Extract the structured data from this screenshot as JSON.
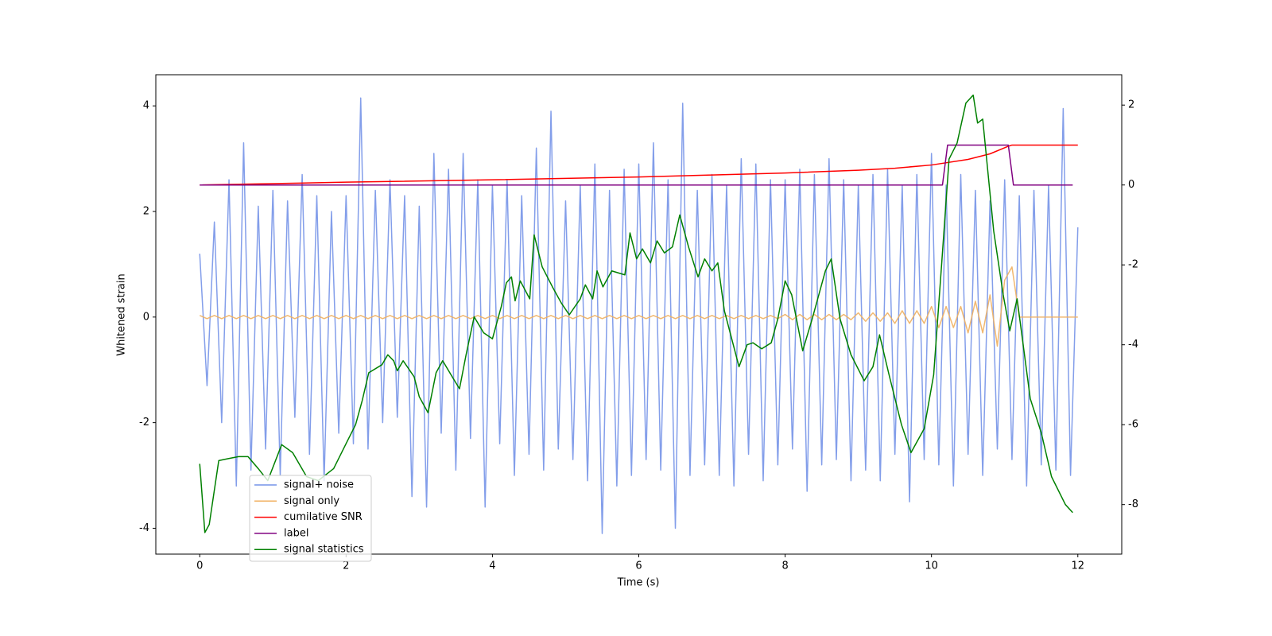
{
  "chart_data": {
    "type": "line",
    "x_label": "Time (s)",
    "y_label": "Whitened strain",
    "xlim": [
      -0.6,
      12.6
    ],
    "ylim": [
      -4.49,
      4.59
    ],
    "y2lim": [
      -9.24,
      2.76
    ],
    "xticks": [
      0,
      2,
      4,
      6,
      8,
      10,
      12
    ],
    "yticks": [
      -4,
      -2,
      0,
      2,
      4
    ],
    "y2ticks": [
      -8,
      -6,
      -4,
      -2,
      0,
      2
    ],
    "x": [
      0,
      0.1,
      0.2,
      0.3,
      0.4,
      0.5,
      0.6,
      0.7,
      0.8,
      0.9,
      1,
      1.1,
      1.2,
      1.3,
      1.4,
      1.5,
      1.6,
      1.7,
      1.8,
      1.9,
      2,
      2.1,
      2.2,
      2.3,
      2.4,
      2.5,
      2.6,
      2.7,
      2.8,
      2.9,
      3,
      3.1,
      3.2,
      3.3,
      3.4,
      3.5,
      3.6,
      3.7,
      3.8,
      3.9,
      4,
      4.1,
      4.2,
      4.3,
      4.4,
      4.5,
      4.6,
      4.7,
      4.8,
      4.9,
      5,
      5.1,
      5.2,
      5.3,
      5.4,
      5.5,
      5.6,
      5.7,
      5.8,
      5.9,
      6,
      6.1,
      6.2,
      6.3,
      6.4,
      6.5,
      6.6,
      6.7,
      6.8,
      6.9,
      7,
      7.1,
      7.2,
      7.3,
      7.4,
      7.5,
      7.6,
      7.7,
      7.8,
      7.9,
      8,
      8.1,
      8.2,
      8.3,
      8.4,
      8.5,
      8.6,
      8.7,
      8.8,
      8.9,
      9,
      9.1,
      9.2,
      9.3,
      9.4,
      9.5,
      9.6,
      9.7,
      9.8,
      9.9,
      10,
      10.1,
      10.2,
      10.3,
      10.4,
      10.5,
      10.6,
      10.7,
      10.8,
      10.9,
      11,
      11.1,
      11.2,
      11.3,
      11.4,
      11.5,
      11.6,
      11.7,
      11.8,
      11.9,
      12
    ],
    "legend": "lower left",
    "series": [
      {
        "name": "signal+ noise",
        "color": "#7593e8",
        "axis": "y",
        "values": [
          1.2,
          -1.3,
          1.8,
          -2.0,
          2.6,
          -3.2,
          3.3,
          -2.9,
          2.1,
          -2.5,
          2.4,
          -3.0,
          2.2,
          -1.9,
          2.7,
          -2.6,
          2.3,
          -3.1,
          2.0,
          -2.2,
          2.3,
          -2.4,
          4.15,
          -2.5,
          2.4,
          -2.0,
          2.6,
          -1.9,
          2.3,
          -3.4,
          2.1,
          -3.6,
          3.1,
          -2.2,
          2.8,
          -2.9,
          3.1,
          -2.3,
          2.6,
          -3.6,
          2.5,
          -2.4,
          2.6,
          -3.0,
          2.3,
          -2.6,
          3.2,
          -2.9,
          3.9,
          -2.5,
          2.2,
          -2.7,
          2.5,
          -3.1,
          2.9,
          -4.1,
          2.4,
          -3.2,
          2.8,
          -3.0,
          2.9,
          -2.7,
          3.3,
          -2.9,
          2.6,
          -4.0,
          4.05,
          -3.0,
          2.4,
          -2.8,
          2.7,
          -3.0,
          2.5,
          -3.2,
          3.0,
          -2.6,
          2.9,
          -3.1,
          2.6,
          -2.8,
          2.6,
          -2.5,
          2.8,
          -3.3,
          2.7,
          -2.8,
          3.0,
          -2.7,
          2.6,
          -3.1,
          2.5,
          -2.9,
          2.7,
          -3.1,
          2.8,
          -2.6,
          2.5,
          -3.5,
          2.7,
          -2.7,
          3.1,
          -2.8,
          2.5,
          -3.2,
          2.7,
          -2.6,
          2.4,
          -3.0,
          2.2,
          -2.5,
          2.6,
          -2.7,
          2.3,
          -3.2,
          2.4,
          -2.8,
          2.5,
          -2.9,
          3.95,
          -3.0,
          1.7
        ]
      },
      {
        "name": "signal only",
        "color": "#f0b060",
        "axis": "y",
        "values": [
          0.03,
          -0.03,
          0.03,
          -0.03,
          0.03,
          -0.03,
          0.03,
          -0.03,
          0.03,
          -0.03,
          0.03,
          -0.03,
          0.03,
          -0.03,
          0.03,
          -0.03,
          0.03,
          -0.03,
          0.03,
          -0.03,
          0.03,
          -0.03,
          0.03,
          -0.03,
          0.03,
          -0.03,
          0.03,
          -0.03,
          0.03,
          -0.03,
          0.03,
          -0.03,
          0.03,
          -0.03,
          0.03,
          -0.03,
          0.03,
          -0.03,
          0.03,
          -0.03,
          0.03,
          -0.03,
          0.03,
          -0.03,
          0.03,
          -0.03,
          0.03,
          -0.03,
          0.03,
          -0.03,
          0.03,
          -0.03,
          0.03,
          -0.03,
          0.03,
          -0.03,
          0.03,
          -0.03,
          0.03,
          -0.03,
          0.03,
          -0.03,
          0.03,
          -0.03,
          0.03,
          -0.03,
          0.03,
          -0.03,
          0.03,
          -0.03,
          0.03,
          -0.03,
          0.03,
          -0.03,
          0.03,
          -0.03,
          0.03,
          -0.03,
          0.03,
          -0.03,
          0.05,
          -0.05,
          0.05,
          -0.05,
          0.05,
          -0.05,
          0.05,
          -0.05,
          0.05,
          -0.05,
          0.08,
          -0.08,
          0.08,
          -0.08,
          0.08,
          -0.12,
          0.12,
          -0.12,
          0.12,
          -0.12,
          0.2,
          -0.2,
          0.2,
          -0.2,
          0.2,
          -0.3,
          0.3,
          -0.3,
          0.42,
          -0.55,
          0.7,
          0.95,
          0,
          0,
          0,
          0,
          0,
          0,
          0,
          0,
          0
        ]
      },
      {
        "name": "cumilative SNR",
        "color": "#ff0000",
        "axis": "y2",
        "x": [
          0,
          2,
          4,
          6,
          7,
          8,
          9,
          9.5,
          10,
          10.5,
          10.8,
          11.05,
          11.1,
          12
        ],
        "values": [
          0,
          0.07,
          0.13,
          0.2,
          0.25,
          0.3,
          0.37,
          0.42,
          0.5,
          0.64,
          0.78,
          0.97,
          1,
          1
        ]
      },
      {
        "name": "label",
        "color": "#800080",
        "axis": "y2",
        "x": [
          0,
          10.15,
          10.22,
          11.05,
          11.12,
          11.93
        ],
        "values": [
          0,
          0,
          1,
          1,
          0,
          0
        ]
      },
      {
        "name": "signal statistics",
        "color": "#008000",
        "axis": "y2",
        "x": [
          0,
          0.07,
          0.13,
          0.26,
          0.39,
          0.53,
          0.66,
          0.8,
          0.93,
          1.12,
          1.27,
          1.46,
          1.62,
          1.83,
          2.02,
          2.13,
          2.22,
          2.31,
          2.49,
          2.57,
          2.65,
          2.7,
          2.78,
          2.93,
          3.0,
          3.12,
          3.23,
          3.32,
          3.45,
          3.55,
          3.64,
          3.75,
          3.88,
          4.0,
          4.12,
          4.19,
          4.26,
          4.31,
          4.38,
          4.51,
          4.57,
          4.68,
          4.82,
          4.94,
          5.05,
          5.2,
          5.27,
          5.37,
          5.43,
          5.51,
          5.63,
          5.81,
          5.88,
          5.97,
          6.05,
          6.16,
          6.25,
          6.35,
          6.46,
          6.56,
          6.68,
          6.81,
          6.9,
          7.0,
          7.08,
          7.17,
          7.37,
          7.48,
          7.56,
          7.68,
          7.81,
          7.9,
          8.0,
          8.09,
          8.24,
          8.37,
          8.55,
          8.63,
          8.75,
          8.9,
          9.08,
          9.2,
          9.29,
          9.42,
          9.59,
          9.72,
          9.9,
          10.03,
          10.14,
          10.24,
          10.35,
          10.47,
          10.57,
          10.63,
          10.7,
          10.85,
          10.98,
          11.07,
          11.17,
          11.35,
          11.5,
          11.64,
          11.83,
          11.93
        ],
        "values": [
          -6.98,
          -8.7,
          -8.5,
          -6.9,
          -6.85,
          -6.8,
          -6.8,
          -7.1,
          -7.4,
          -6.5,
          -6.7,
          -7.3,
          -7.4,
          -7.1,
          -6.4,
          -6.0,
          -5.4,
          -4.7,
          -4.5,
          -4.25,
          -4.4,
          -4.65,
          -4.4,
          -4.8,
          -5.3,
          -5.7,
          -4.7,
          -4.4,
          -4.8,
          -5.1,
          -4.25,
          -3.3,
          -3.7,
          -3.85,
          -3.05,
          -2.45,
          -2.3,
          -2.9,
          -2.4,
          -2.85,
          -1.25,
          -2.05,
          -2.55,
          -2.95,
          -3.25,
          -2.85,
          -2.5,
          -2.85,
          -2.15,
          -2.55,
          -2.15,
          -2.25,
          -1.2,
          -1.85,
          -1.6,
          -1.95,
          -1.4,
          -1.7,
          -1.55,
          -0.75,
          -1.55,
          -2.3,
          -1.85,
          -2.15,
          -1.95,
          -3.15,
          -4.55,
          -4.0,
          -3.95,
          -4.1,
          -3.95,
          -3.35,
          -2.4,
          -2.75,
          -4.15,
          -3.35,
          -2.15,
          -1.85,
          -3.35,
          -4.25,
          -4.9,
          -4.55,
          -3.75,
          -4.75,
          -6.0,
          -6.7,
          -6.1,
          -4.75,
          -1.95,
          0.65,
          1.05,
          2.05,
          2.25,
          1.55,
          1.65,
          -1.15,
          -2.75,
          -3.65,
          -2.85,
          -5.35,
          -6.2,
          -7.3,
          -8.0,
          -8.2
        ]
      }
    ]
  }
}
